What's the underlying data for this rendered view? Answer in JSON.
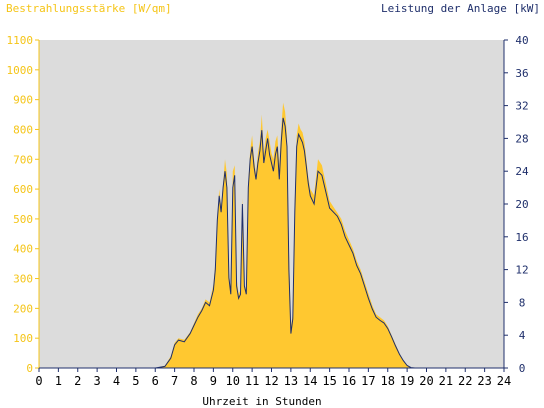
{
  "colors": {
    "irradiance_fill": "#ffc830",
    "irradiance_axis": "#f5c518",
    "power_line": "#1f2f6b",
    "plot_bg": "#dcdcdc",
    "axis_text": "#000000"
  },
  "chart_data": {
    "type": "area",
    "title_left": "Bestrahlungsstärke [W/qm]",
    "title_right": "Leistung der Anlage [kW]",
    "xlabel": "Uhrzeit in Stunden",
    "xlim": [
      0,
      24
    ],
    "x_ticks": [
      "0",
      "1",
      "2",
      "3",
      "4",
      "5",
      "6",
      "7",
      "8",
      "9",
      "10",
      "11",
      "12",
      "13",
      "14",
      "15",
      "16",
      "17",
      "18",
      "19",
      "20",
      "21",
      "22",
      "23",
      "24"
    ],
    "y_left_lim": [
      0,
      1100
    ],
    "y_left_ticks": [
      "0",
      "100",
      "200",
      "300",
      "400",
      "500",
      "600",
      "700",
      "800",
      "900",
      "1000",
      "1100"
    ],
    "y_right_lim": [
      0,
      40
    ],
    "y_right_ticks": [
      "0",
      "4",
      "8",
      "12",
      "16",
      "20",
      "24",
      "28",
      "32",
      "36",
      "40"
    ],
    "grid": false,
    "series": [
      {
        "name": "Bestrahlungsstärke [W/qm]",
        "axis": "left",
        "kind": "area",
        "x": [
          0,
          6.0,
          6.5,
          6.8,
          7.0,
          7.2,
          7.5,
          7.8,
          8.0,
          8.2,
          8.4,
          8.6,
          8.8,
          9.0,
          9.1,
          9.2,
          9.3,
          9.4,
          9.5,
          9.6,
          9.7,
          9.8,
          9.9,
          10.0,
          10.1,
          10.2,
          10.3,
          10.4,
          10.5,
          10.6,
          10.7,
          10.8,
          10.9,
          11.0,
          11.1,
          11.2,
          11.3,
          11.4,
          11.5,
          11.6,
          11.7,
          11.8,
          11.9,
          12.0,
          12.1,
          12.2,
          12.3,
          12.4,
          12.5,
          12.6,
          12.7,
          12.8,
          12.9,
          13.0,
          13.1,
          13.2,
          13.3,
          13.4,
          13.5,
          13.6,
          13.7,
          13.8,
          13.9,
          14.0,
          14.2,
          14.4,
          14.6,
          14.8,
          15.0,
          15.2,
          15.4,
          15.6,
          15.8,
          16.0,
          16.2,
          16.4,
          16.6,
          16.8,
          17.0,
          17.2,
          17.4,
          17.6,
          17.8,
          18.0,
          18.2,
          18.4,
          18.6,
          18.8,
          19.0,
          19.2,
          19.4,
          24
        ],
        "values": [
          0,
          0,
          8,
          40,
          85,
          100,
          95,
          120,
          150,
          180,
          200,
          230,
          220,
          280,
          350,
          480,
          600,
          540,
          620,
          700,
          650,
          320,
          260,
          660,
          680,
          300,
          250,
          260,
          570,
          280,
          260,
          620,
          730,
          780,
          700,
          650,
          720,
          760,
          850,
          720,
          770,
          800,
          760,
          720,
          700,
          760,
          780,
          680,
          800,
          890,
          860,
          780,
          400,
          140,
          180,
          560,
          780,
          820,
          800,
          790,
          760,
          700,
          640,
          600,
          580,
          700,
          680,
          620,
          560,
          540,
          520,
          500,
          460,
          430,
          400,
          360,
          330,
          290,
          250,
          210,
          180,
          170,
          160,
          140,
          110,
          80,
          50,
          25,
          10,
          2,
          0,
          0
        ]
      },
      {
        "name": "Leistung der Anlage [kW]",
        "axis": "right",
        "kind": "line",
        "x": [
          0,
          6.0,
          6.5,
          6.8,
          7.0,
          7.2,
          7.5,
          7.8,
          8.0,
          8.2,
          8.4,
          8.6,
          8.8,
          9.0,
          9.1,
          9.2,
          9.3,
          9.4,
          9.5,
          9.6,
          9.7,
          9.8,
          9.9,
          10.0,
          10.1,
          10.2,
          10.3,
          10.4,
          10.5,
          10.6,
          10.7,
          10.8,
          10.9,
          11.0,
          11.1,
          11.2,
          11.3,
          11.4,
          11.5,
          11.6,
          11.7,
          11.8,
          11.9,
          12.0,
          12.1,
          12.2,
          12.3,
          12.4,
          12.5,
          12.6,
          12.7,
          12.8,
          12.9,
          13.0,
          13.1,
          13.2,
          13.3,
          13.4,
          13.5,
          13.6,
          13.7,
          13.8,
          13.9,
          14.0,
          14.2,
          14.4,
          14.6,
          14.8,
          15.0,
          15.2,
          15.4,
          15.6,
          15.8,
          16.0,
          16.2,
          16.4,
          16.6,
          16.8,
          17.0,
          17.2,
          17.4,
          17.6,
          17.8,
          18.0,
          18.2,
          18.4,
          18.6,
          18.8,
          19.0,
          19.2,
          19.4,
          24
        ],
        "values": [
          0,
          0,
          0.2,
          1.2,
          2.8,
          3.4,
          3.2,
          4.2,
          5.2,
          6.2,
          7.0,
          8.0,
          7.6,
          9.5,
          12.0,
          18.0,
          21.0,
          19.0,
          22.0,
          24.0,
          22.0,
          11.0,
          9.0,
          22.0,
          23.5,
          10.0,
          8.5,
          9.0,
          20.0,
          10.0,
          9.0,
          22.0,
          25.5,
          27.0,
          24.5,
          23.0,
          25.0,
          26.5,
          29.0,
          25.0,
          26.5,
          28.0,
          26.0,
          25.0,
          24.0,
          26.0,
          27.0,
          23.0,
          27.5,
          30.5,
          29.5,
          27.0,
          12.0,
          4.2,
          6.0,
          19.0,
          27.0,
          28.5,
          28.0,
          27.5,
          26.5,
          24.5,
          22.5,
          21.0,
          20.0,
          24.0,
          23.5,
          21.5,
          19.5,
          19.0,
          18.5,
          17.5,
          16.0,
          15.0,
          14.0,
          12.5,
          11.5,
          10.0,
          8.5,
          7.2,
          6.2,
          5.8,
          5.5,
          4.8,
          3.8,
          2.7,
          1.7,
          0.9,
          0.3,
          0.05,
          0,
          0
        ]
      }
    ]
  }
}
